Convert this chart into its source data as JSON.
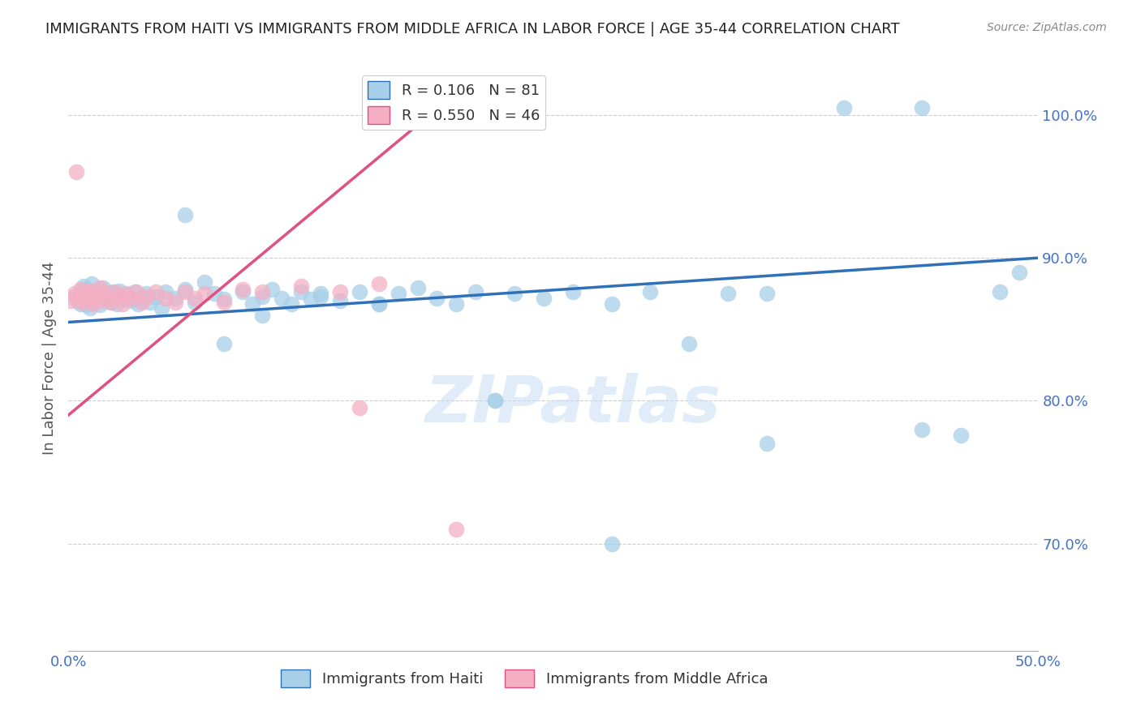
{
  "title": "IMMIGRANTS FROM HAITI VS IMMIGRANTS FROM MIDDLE AFRICA IN LABOR FORCE | AGE 35-44 CORRELATION CHART",
  "source": "Source: ZipAtlas.com",
  "ylabel": "In Labor Force | Age 35-44",
  "xlim": [
    0.0,
    0.5
  ],
  "ylim": [
    0.625,
    1.035
  ],
  "yticks": [
    0.7,
    0.8,
    0.9,
    1.0
  ],
  "ytick_labels": [
    "70.0%",
    "80.0%",
    "90.0%",
    "100.0%"
  ],
  "xtick_labels": [
    "0.0%",
    "",
    "",
    "",
    "",
    "50.0%"
  ],
  "legend1_R": "0.106",
  "legend1_N": "81",
  "legend2_R": "0.550",
  "legend2_N": "46",
  "blue_scatter_color": "#a8cfe8",
  "pink_scatter_color": "#f4afc4",
  "blue_line_color": "#3070b8",
  "pink_line_color": "#e05080",
  "background_color": "#ffffff",
  "grid_color": "#cccccc",
  "title_color": "#222222",
  "tick_label_color": "#4472c4",
  "watermark": "ZIPatlas",
  "haiti_x": [
    0.003,
    0.005,
    0.006,
    0.007,
    0.008,
    0.009,
    0.01,
    0.01,
    0.011,
    0.012,
    0.013,
    0.014,
    0.015,
    0.016,
    0.017,
    0.018,
    0.019,
    0.02,
    0.021,
    0.022,
    0.023,
    0.024,
    0.025,
    0.026,
    0.028,
    0.03,
    0.032,
    0.034,
    0.036,
    0.038,
    0.04,
    0.042,
    0.045,
    0.048,
    0.05,
    0.055,
    0.06,
    0.065,
    0.07,
    0.075,
    0.08,
    0.09,
    0.095,
    0.1,
    0.105,
    0.11,
    0.115,
    0.12,
    0.125,
    0.13,
    0.14,
    0.15,
    0.16,
    0.17,
    0.18,
    0.19,
    0.2,
    0.21,
    0.22,
    0.23,
    0.245,
    0.26,
    0.28,
    0.3,
    0.32,
    0.34,
    0.36,
    0.4,
    0.44,
    0.46,
    0.06,
    0.08,
    0.1,
    0.13,
    0.16,
    0.22,
    0.28,
    0.36,
    0.44,
    0.48,
    0.49
  ],
  "haiti_y": [
    0.873,
    0.87,
    0.868,
    0.875,
    0.88,
    0.867,
    0.872,
    0.878,
    0.865,
    0.882,
    0.869,
    0.876,
    0.873,
    0.867,
    0.874,
    0.879,
    0.87,
    0.875,
    0.872,
    0.869,
    0.876,
    0.873,
    0.868,
    0.877,
    0.871,
    0.874,
    0.87,
    0.876,
    0.868,
    0.872,
    0.875,
    0.869,
    0.873,
    0.865,
    0.876,
    0.872,
    0.878,
    0.869,
    0.883,
    0.875,
    0.871,
    0.876,
    0.868,
    0.873,
    0.878,
    0.872,
    0.868,
    0.876,
    0.871,
    0.873,
    0.87,
    0.876,
    0.868,
    0.875,
    0.879,
    0.872,
    0.868,
    0.876,
    0.8,
    0.875,
    0.872,
    0.876,
    0.868,
    0.876,
    0.84,
    0.875,
    0.77,
    1.005,
    1.005,
    0.776,
    0.93,
    0.84,
    0.86,
    0.875,
    0.868,
    0.8,
    0.7,
    0.875,
    0.78,
    0.876,
    0.89
  ],
  "africa_x": [
    0.001,
    0.003,
    0.005,
    0.006,
    0.007,
    0.008,
    0.009,
    0.01,
    0.011,
    0.012,
    0.013,
    0.014,
    0.015,
    0.016,
    0.017,
    0.018,
    0.02,
    0.022,
    0.024,
    0.026,
    0.028,
    0.03,
    0.032,
    0.035,
    0.038,
    0.04,
    0.045,
    0.05,
    0.055,
    0.06,
    0.065,
    0.07,
    0.08,
    0.09,
    0.1,
    0.12,
    0.14,
    0.16,
    0.175,
    0.175,
    0.176,
    0.177,
    0.178,
    0.004,
    0.15,
    0.2
  ],
  "africa_y": [
    0.87,
    0.875,
    0.872,
    0.878,
    0.869,
    0.873,
    0.876,
    0.87,
    0.877,
    0.872,
    0.868,
    0.875,
    0.873,
    0.879,
    0.87,
    0.876,
    0.872,
    0.869,
    0.876,
    0.873,
    0.868,
    0.875,
    0.872,
    0.876,
    0.869,
    0.873,
    0.876,
    0.872,
    0.869,
    0.876,
    0.872,
    0.875,
    0.869,
    0.878,
    0.876,
    0.88,
    0.876,
    0.882,
    1.005,
    1.005,
    1.005,
    1.005,
    1.005,
    0.96,
    0.795,
    0.71
  ],
  "blue_line_x": [
    0.0,
    0.5
  ],
  "blue_line_y": [
    0.855,
    0.9
  ],
  "pink_line_x": [
    0.0,
    0.195
  ],
  "pink_line_y": [
    0.79,
    1.01
  ]
}
